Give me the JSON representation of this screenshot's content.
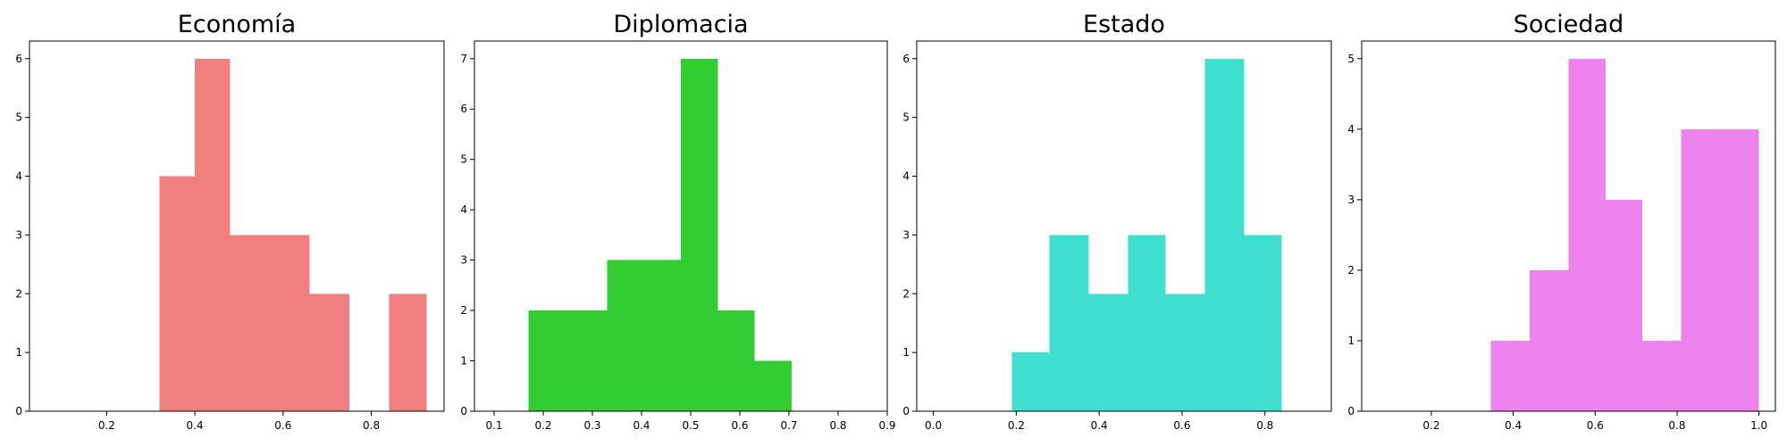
{
  "chart_data": [
    {
      "type": "bar",
      "title": "Economía",
      "color": "#F08080",
      "xlim": [
        0.025,
        0.965
      ],
      "ylim": [
        0,
        6.3
      ],
      "xticks": [
        0.2,
        0.4,
        0.6,
        0.8
      ],
      "xtick_labels": [
        "0.2",
        "0.4",
        "0.6",
        "0.8"
      ],
      "yticks": [
        0,
        1,
        2,
        3,
        4,
        5,
        6
      ],
      "ytick_labels": [
        "0",
        "1",
        "2",
        "3",
        "4",
        "5",
        "6"
      ],
      "bins": [
        {
          "x0": 0.32,
          "x1": 0.4,
          "count": 4
        },
        {
          "x0": 0.4,
          "x1": 0.48,
          "count": 6
        },
        {
          "x0": 0.48,
          "x1": 0.57,
          "count": 3
        },
        {
          "x0": 0.57,
          "x1": 0.66,
          "count": 3
        },
        {
          "x0": 0.66,
          "x1": 0.75,
          "count": 2
        },
        {
          "x0": 0.75,
          "x1": 0.84,
          "count": 0
        },
        {
          "x0": 0.84,
          "x1": 0.925,
          "count": 2
        }
      ]
    },
    {
      "type": "bar",
      "title": "Diplomacia",
      "color": "#32CD32",
      "xlim": [
        0.06,
        0.9
      ],
      "ylim": [
        0,
        7.35
      ],
      "xticks": [
        0.1,
        0.2,
        0.3,
        0.4,
        0.5,
        0.6,
        0.7,
        0.8,
        0.9
      ],
      "xtick_labels": [
        "0.1",
        "0.2",
        "0.3",
        "0.4",
        "0.5",
        "0.6",
        "0.7",
        "0.8",
        "0.9"
      ],
      "yticks": [
        0,
        1,
        2,
        3,
        4,
        5,
        6,
        7
      ],
      "ytick_labels": [
        "0",
        "1",
        "2",
        "3",
        "4",
        "5",
        "6",
        "7"
      ],
      "bins": [
        {
          "x0": 0.17,
          "x1": 0.25,
          "count": 2
        },
        {
          "x0": 0.25,
          "x1": 0.33,
          "count": 2
        },
        {
          "x0": 0.33,
          "x1": 0.41,
          "count": 3
        },
        {
          "x0": 0.41,
          "x1": 0.48,
          "count": 3
        },
        {
          "x0": 0.48,
          "x1": 0.555,
          "count": 7
        },
        {
          "x0": 0.555,
          "x1": 0.63,
          "count": 2
        },
        {
          "x0": 0.63,
          "x1": 0.705,
          "count": 1
        }
      ]
    },
    {
      "type": "bar",
      "title": "Estado",
      "color": "#40E0D0",
      "xlim": [
        -0.04,
        0.96
      ],
      "ylim": [
        0,
        6.3
      ],
      "xticks": [
        0.0,
        0.2,
        0.4,
        0.6,
        0.8
      ],
      "xtick_labels": [
        "0.0",
        "0.2",
        "0.4",
        "0.6",
        "0.8"
      ],
      "yticks": [
        0,
        1,
        2,
        3,
        4,
        5,
        6
      ],
      "ytick_labels": [
        "0",
        "1",
        "2",
        "3",
        "4",
        "5",
        "6"
      ],
      "bins": [
        {
          "x0": 0.19,
          "x1": 0.28,
          "count": 1
        },
        {
          "x0": 0.28,
          "x1": 0.375,
          "count": 3
        },
        {
          "x0": 0.375,
          "x1": 0.47,
          "count": 2
        },
        {
          "x0": 0.47,
          "x1": 0.56,
          "count": 3
        },
        {
          "x0": 0.56,
          "x1": 0.655,
          "count": 2
        },
        {
          "x0": 0.655,
          "x1": 0.75,
          "count": 6
        },
        {
          "x0": 0.75,
          "x1": 0.84,
          "count": 3
        }
      ]
    },
    {
      "type": "bar",
      "title": "Sociedad",
      "color": "#EE82EE",
      "xlim": [
        0.03,
        1.04
      ],
      "ylim": [
        0,
        5.25
      ],
      "xticks": [
        0.2,
        0.4,
        0.6,
        0.8,
        1.0
      ],
      "xtick_labels": [
        "0.2",
        "0.4",
        "0.6",
        "0.8",
        "1.0"
      ],
      "yticks": [
        0,
        1,
        2,
        3,
        4,
        5
      ],
      "ytick_labels": [
        "0",
        "1",
        "2",
        "3",
        "4",
        "5"
      ],
      "bins": [
        {
          "x0": 0.345,
          "x1": 0.44,
          "count": 1
        },
        {
          "x0": 0.44,
          "x1": 0.535,
          "count": 2
        },
        {
          "x0": 0.535,
          "x1": 0.625,
          "count": 5
        },
        {
          "x0": 0.625,
          "x1": 0.715,
          "count": 3
        },
        {
          "x0": 0.715,
          "x1": 0.81,
          "count": 1
        },
        {
          "x0": 0.81,
          "x1": 0.905,
          "count": 4
        },
        {
          "x0": 0.905,
          "x1": 1.0,
          "count": 4
        }
      ]
    }
  ]
}
